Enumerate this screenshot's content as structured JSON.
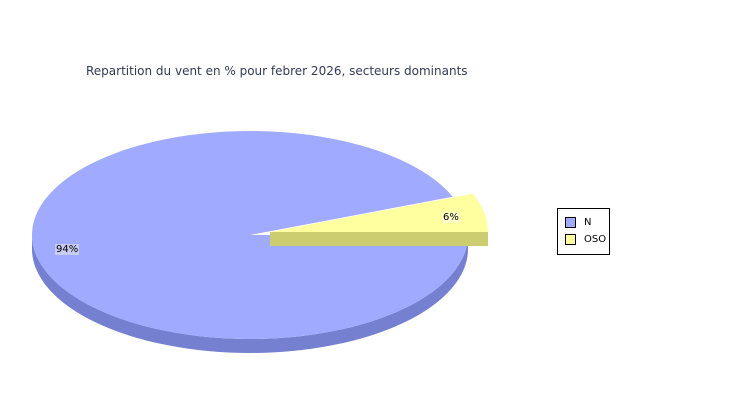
{
  "chart_data": {
    "type": "pie",
    "title": "Repartition du vent en % pour febrer 2026, secteurs dominants",
    "categories": [
      "N",
      "OSO"
    ],
    "values": [
      94,
      6
    ],
    "labels": [
      "94%",
      "6%"
    ],
    "colors": [
      "#a0aaff",
      "#ffffa0"
    ],
    "side_colors": [
      "#7580d0",
      "#cccc70"
    ],
    "exploded": [
      "OSO"
    ],
    "legend_position": "right"
  }
}
